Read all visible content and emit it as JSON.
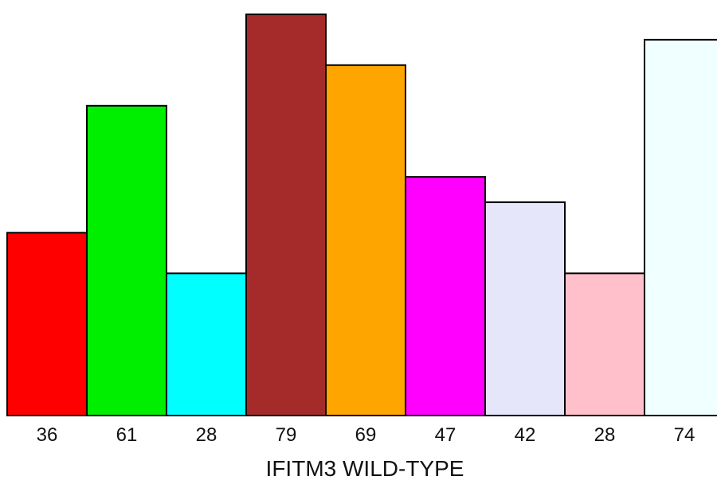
{
  "chart_data": {
    "type": "bar",
    "categories": [
      "36",
      "61",
      "28",
      "79",
      "69",
      "47",
      "42",
      "28",
      "74"
    ],
    "values": [
      36,
      61,
      28,
      79,
      69,
      47,
      42,
      28,
      74
    ],
    "colors": [
      "#ff0000",
      "#00ee00",
      "#00ffff",
      "#a52a2a",
      "#ffa500",
      "#ff00ff",
      "#e6e6fa",
      "#ffc0cb",
      "#f0ffff"
    ],
    "title": "",
    "xlabel": "IFITM3 WILD-TYPE",
    "ylabel": "",
    "ylim": [
      0,
      79
    ],
    "grid": false,
    "legend": "none",
    "bar_edge_color": "#000000"
  }
}
